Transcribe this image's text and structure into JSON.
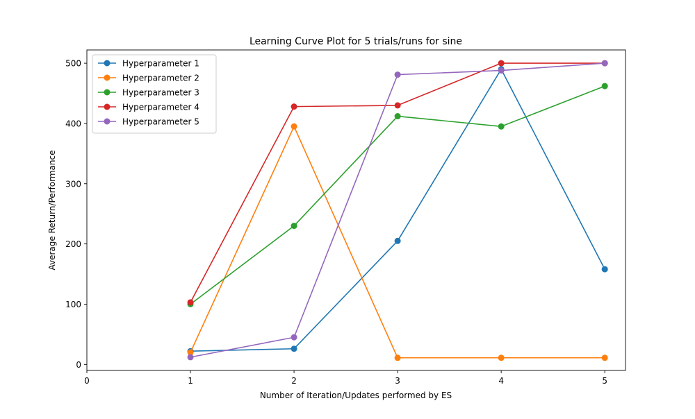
{
  "chart_data": {
    "type": "line",
    "title": "Learning Curve Plot for 5 trials/runs for sine",
    "xlabel": "Number of Iteration/Updates performed by ES",
    "ylabel": "Average Return/Performance",
    "xlim": [
      0,
      5.2
    ],
    "ylim": [
      -10,
      522
    ],
    "xticks": [
      0,
      1,
      2,
      3,
      4,
      5
    ],
    "yticks": [
      0,
      100,
      200,
      300,
      400,
      500
    ],
    "grid": false,
    "legend_position": "top-left",
    "x": [
      1,
      2,
      3,
      4,
      5
    ],
    "series": [
      {
        "name": "Hyperparameter 1",
        "color": "#1f77b4",
        "values": [
          22,
          26,
          205,
          490,
          158
        ]
      },
      {
        "name": "Hyperparameter 2",
        "color": "#ff7f0e",
        "values": [
          20,
          395,
          11,
          11,
          11
        ]
      },
      {
        "name": "Hyperparameter 3",
        "color": "#2ca02c",
        "values": [
          100,
          230,
          412,
          395,
          462
        ]
      },
      {
        "name": "Hyperparameter 4",
        "color": "#d62728",
        "values": [
          103,
          428,
          430,
          500,
          500
        ]
      },
      {
        "name": "Hyperparameter 5",
        "color": "#9467bd",
        "values": [
          12,
          45,
          481,
          488,
          500
        ]
      }
    ]
  }
}
